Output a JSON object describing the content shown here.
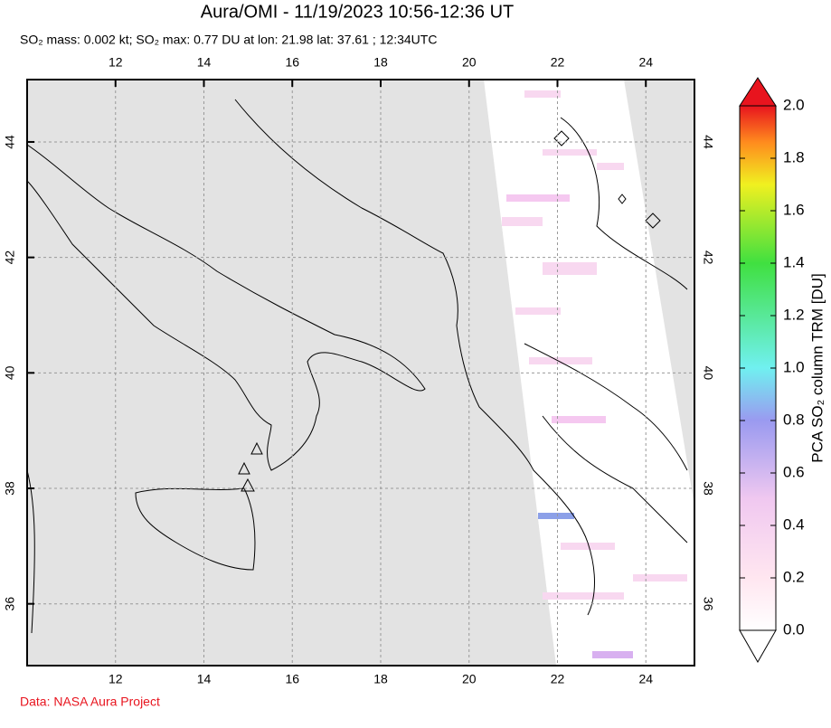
{
  "title": "Aura/OMI - 11/19/2023 10:56-12:36 UT",
  "subtitle": "SO₂ mass: 0.002 kt; SO₂ max: 0.77 DU at lon: 21.98 lat: 37.61 ; 12:34UTC",
  "map": {
    "xlim": [
      10,
      25.1
    ],
    "ylim": [
      34.93,
      45.08
    ],
    "xticks": [
      12,
      14,
      16,
      18,
      20,
      22,
      24
    ],
    "yticks": [
      36,
      38,
      40,
      42,
      44
    ]
  },
  "colorbar": {
    "label": "PCA SO₂ column TRM [DU]",
    "lim": [
      0,
      2
    ],
    "ticks": [
      {
        "value": 0,
        "label": "0.0"
      },
      {
        "value": 0.2,
        "label": "0.2"
      },
      {
        "value": 0.4,
        "label": "0.4"
      },
      {
        "value": 0.6,
        "label": "0.6"
      },
      {
        "value": 0.8,
        "label": "0.8"
      },
      {
        "value": 1,
        "label": "1.0"
      },
      {
        "value": 1.2,
        "label": "1.2"
      },
      {
        "value": 1.4,
        "label": "1.4"
      },
      {
        "value": 1.6,
        "label": "1.6"
      },
      {
        "value": 1.8,
        "label": "1.8"
      },
      {
        "value": 2,
        "label": "2.0"
      }
    ]
  },
  "footer": "Data: NASA Aura Project"
}
